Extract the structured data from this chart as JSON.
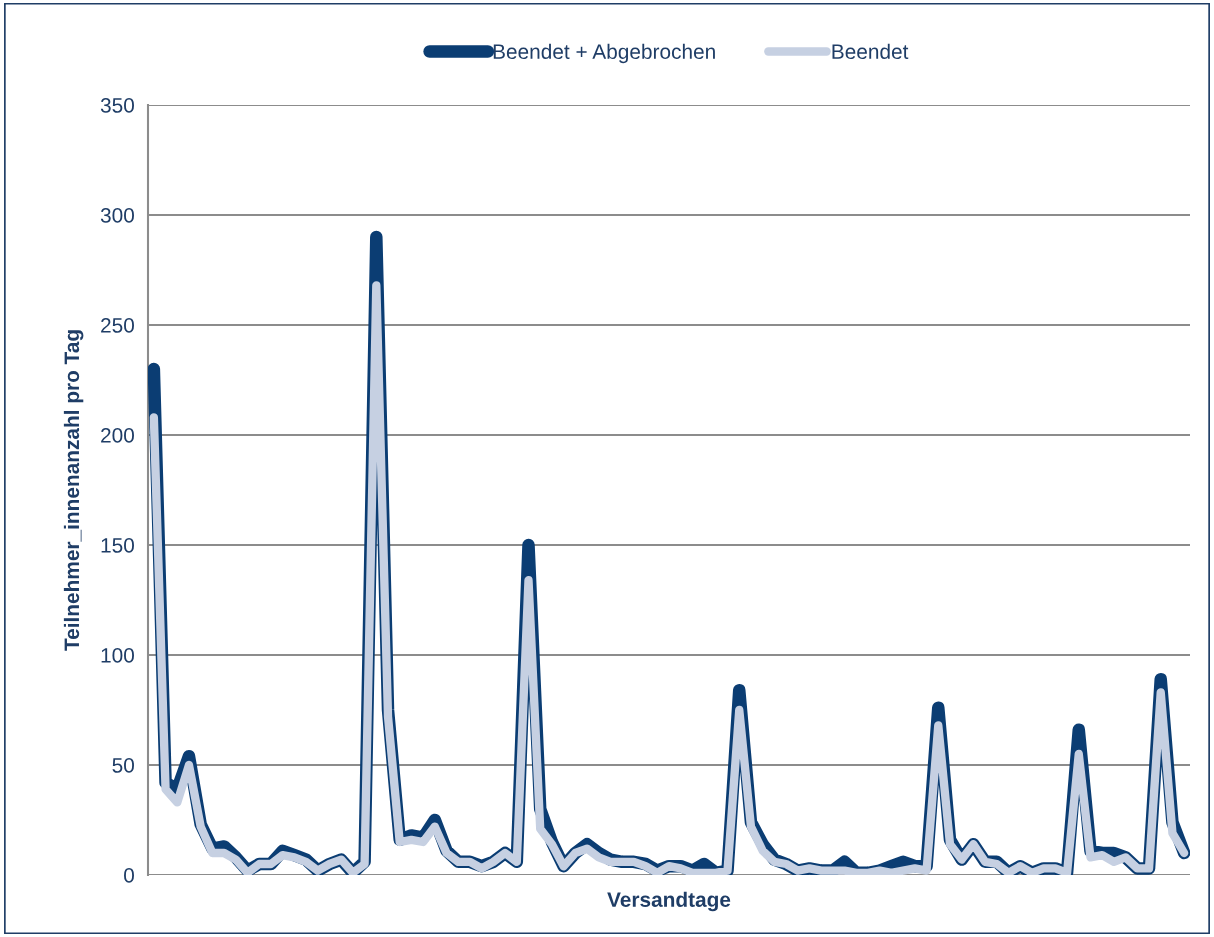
{
  "chart_data": {
    "type": "line",
    "xlabel": "Versandtage",
    "ylabel": "Teilnehmer_innenanzahl pro Tag",
    "categories": [
      null,
      null,
      null,
      null,
      null,
      null,
      null,
      null,
      null,
      null,
      null,
      null,
      null,
      null,
      null,
      null,
      null,
      null,
      null,
      null,
      null,
      null,
      null,
      null,
      null,
      null,
      null,
      null,
      null,
      null,
      null,
      null,
      null,
      null,
      null,
      null,
      null,
      null,
      null,
      null,
      null,
      null,
      null,
      null,
      null,
      null,
      null,
      null,
      null,
      null,
      null,
      null,
      null,
      null,
      null,
      null,
      null,
      null,
      null,
      null,
      null,
      null,
      null,
      null,
      null,
      null,
      null,
      null,
      null,
      null,
      null,
      null,
      null,
      null,
      null,
      null,
      null,
      null,
      null,
      null,
      null,
      null,
      null,
      null,
      null,
      null,
      null,
      null,
      null
    ],
    "series": [
      {
        "name": "Beendet + Abgebrochen",
        "color": "#0b3d73",
        "values": [
          230,
          42,
          39,
          54,
          23,
          12,
          13,
          8,
          2,
          5,
          5,
          11,
          9,
          7,
          2,
          5,
          7,
          1,
          6,
          290,
          75,
          16,
          18,
          17,
          25,
          11,
          6,
          6,
          4,
          6,
          10,
          6,
          150,
          30,
          15,
          4,
          10,
          14,
          10,
          7,
          6,
          6,
          5,
          2,
          4,
          4,
          2,
          5,
          1,
          2,
          84,
          24,
          14,
          7,
          5,
          2,
          3,
          2,
          2,
          6,
          1,
          1,
          2,
          4,
          6,
          4,
          4,
          76,
          16,
          7,
          14,
          6,
          6,
          1,
          4,
          1,
          3,
          3,
          1,
          66,
          11,
          10,
          10,
          8,
          3,
          3,
          89,
          24,
          10
        ]
      },
      {
        "name": "Beendet",
        "color": "#c6d0e2",
        "values": [
          208,
          39,
          33,
          50,
          22,
          10,
          10,
          7,
          1,
          5,
          5,
          9,
          8,
          6,
          2,
          5,
          7,
          1,
          5,
          268,
          72,
          15,
          16,
          15,
          22,
          10,
          6,
          6,
          3,
          6,
          10,
          6,
          134,
          21,
          14,
          4,
          10,
          12,
          8,
          6,
          6,
          6,
          4,
          1,
          4,
          3,
          1,
          1,
          1,
          2,
          75,
          22,
          11,
          6,
          5,
          2,
          3,
          2,
          2,
          2,
          1,
          1,
          2,
          1,
          2,
          3,
          2,
          68,
          14,
          7,
          14,
          6,
          5,
          1,
          4,
          1,
          3,
          3,
          1,
          55,
          8,
          9,
          6,
          8,
          3,
          3,
          83,
          19,
          10
        ]
      }
    ],
    "ylim": [
      0,
      350
    ],
    "yticks": [
      0,
      50,
      100,
      150,
      200,
      250,
      300,
      350
    ],
    "grid": "y",
    "legend": "top",
    "tick_labels": "y",
    "marker": "none",
    "line_style": "solid"
  }
}
